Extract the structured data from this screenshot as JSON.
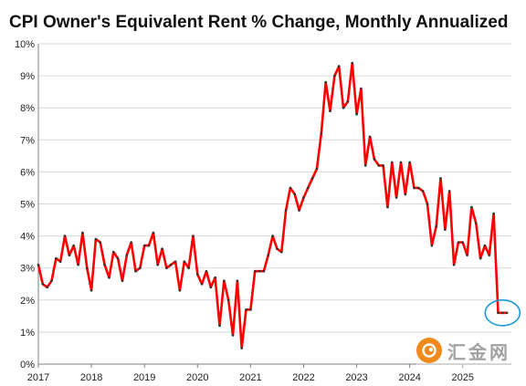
{
  "colors": {
    "line": "#ff0000",
    "marker": "#333333",
    "highlight": "#1a9bd6",
    "watermark": "#f08a1c"
  },
  "watermark": {
    "text": "汇金网",
    "icon": "gold-coin-logo-icon"
  },
  "chart_data": {
    "type": "line",
    "title": "CPI Owner's Equivalent Rent % Change, Monthly Annualized",
    "xlabel": "",
    "ylabel": "",
    "x_ticks": [
      "2017",
      "2018",
      "2019",
      "2020",
      "2021",
      "2022",
      "2023",
      "2024",
      "2025"
    ],
    "y_ticks": [
      "0%",
      "1%",
      "2%",
      "3%",
      "4%",
      "5%",
      "6%",
      "7%",
      "8%",
      "9%",
      "10%"
    ],
    "xlim": [
      "2017-01",
      "2025-12"
    ],
    "ylim": [
      0,
      10
    ],
    "grid": "horizontal",
    "legend": "none",
    "annotation": "circle around the last three points",
    "series": [
      {
        "x": [
          "2017-01",
          "2017-02",
          "2017-03",
          "2017-04",
          "2017-05",
          "2017-06",
          "2017-07",
          "2017-08",
          "2017-09",
          "2017-10",
          "2017-11",
          "2017-12",
          "2018-01",
          "2018-02",
          "2018-03",
          "2018-04",
          "2018-05",
          "2018-06",
          "2018-07",
          "2018-08",
          "2018-09",
          "2018-10",
          "2018-11",
          "2018-12",
          "2019-01",
          "2019-02",
          "2019-03",
          "2019-04",
          "2019-05",
          "2019-06",
          "2019-07",
          "2019-08",
          "2019-09",
          "2019-10",
          "2019-11",
          "2019-12",
          "2020-01",
          "2020-02",
          "2020-03",
          "2020-04",
          "2020-05",
          "2020-06",
          "2020-07",
          "2020-08",
          "2020-09",
          "2020-10",
          "2020-11",
          "2020-12",
          "2021-01",
          "2021-02",
          "2021-03",
          "2021-04",
          "2021-05",
          "2021-06",
          "2021-07",
          "2021-08",
          "2021-09",
          "2021-10",
          "2021-11",
          "2021-12",
          "2022-01",
          "2022-02",
          "2022-03",
          "2022-04",
          "2022-05",
          "2022-06",
          "2022-07",
          "2022-08",
          "2022-09",
          "2022-10",
          "2022-11",
          "2022-12",
          "2023-01",
          "2023-02",
          "2023-03",
          "2023-04",
          "2023-05",
          "2023-06",
          "2023-07",
          "2023-08",
          "2023-09",
          "2023-10",
          "2023-11",
          "2023-12",
          "2024-01",
          "2024-02",
          "2024-03",
          "2024-04",
          "2024-05",
          "2024-06",
          "2024-07",
          "2024-08",
          "2024-09",
          "2024-10",
          "2024-11",
          "2024-12",
          "2025-01",
          "2025-02",
          "2025-03",
          "2025-04",
          "2025-05",
          "2025-06",
          "2025-07",
          "2025-08",
          "2025-09",
          "2025-10",
          "2025-11"
        ],
        "y": [
          3.1,
          2.5,
          2.4,
          2.6,
          3.3,
          3.2,
          4.0,
          3.4,
          3.7,
          3.1,
          4.1,
          3.0,
          2.3,
          3.9,
          3.8,
          3.1,
          2.7,
          3.5,
          3.3,
          2.6,
          3.4,
          3.8,
          2.9,
          3.0,
          3.7,
          3.7,
          4.1,
          3.1,
          3.6,
          3.0,
          3.1,
          3.2,
          2.3,
          3.2,
          3.0,
          4.0,
          2.8,
          2.5,
          2.9,
          2.4,
          2.7,
          1.2,
          2.6,
          2.0,
          0.9,
          2.6,
          0.5,
          1.7,
          1.7,
          2.9,
          2.9,
          2.9,
          3.4,
          4.0,
          3.6,
          3.5,
          4.8,
          5.5,
          5.3,
          4.8,
          5.2,
          5.5,
          5.8,
          6.1,
          7.2,
          8.8,
          7.9,
          9.0,
          9.3,
          8.0,
          8.2,
          9.4,
          7.8,
          8.6,
          6.2,
          7.1,
          6.4,
          6.2,
          6.2,
          4.9,
          6.3,
          5.2,
          6.3,
          5.3,
          6.3,
          5.5,
          5.5,
          5.4,
          5.0,
          3.7,
          4.3,
          5.8,
          4.2,
          5.4,
          3.1,
          3.8,
          3.8,
          3.4,
          4.9,
          4.4,
          3.3,
          3.7,
          3.4,
          4.7,
          1.6,
          1.6,
          1.6
        ]
      }
    ]
  }
}
